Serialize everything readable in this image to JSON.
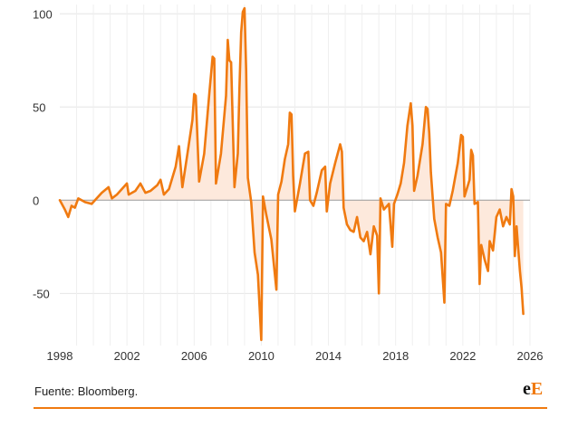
{
  "chart_data": {
    "type": "area",
    "title": "",
    "xlabel": "",
    "ylabel": "",
    "xlim": [
      1998,
      2026
    ],
    "ylim": [
      -78,
      105
    ],
    "y_ticks": [
      100,
      50,
      0,
      -50
    ],
    "y_tick_labels": [
      "100",
      "50",
      "0",
      "-50"
    ],
    "x_ticks": [
      1998,
      2002,
      2006,
      2010,
      2014,
      2018,
      2022,
      2026
    ],
    "x_tick_labels": [
      "1998",
      "2002",
      "2006",
      "2010",
      "2014",
      "2018",
      "2022",
      "2026"
    ],
    "grid": true,
    "legend": "none",
    "series": [
      {
        "color": "#f07a10",
        "fill": "#fde9dc",
        "points": [
          [
            1998.0,
            0
          ],
          [
            1998.3,
            -5
          ],
          [
            1998.5,
            -9
          ],
          [
            1998.7,
            -3
          ],
          [
            1998.9,
            -4
          ],
          [
            1999.1,
            1
          ],
          [
            1999.5,
            -1
          ],
          [
            1999.9,
            -2
          ],
          [
            2000.1,
            0
          ],
          [
            2000.5,
            4
          ],
          [
            2000.9,
            7
          ],
          [
            2001.1,
            1
          ],
          [
            2001.4,
            3
          ],
          [
            2001.8,
            7
          ],
          [
            2002.0,
            9
          ],
          [
            2002.1,
            3
          ],
          [
            2002.5,
            5
          ],
          [
            2002.8,
            9
          ],
          [
            2003.1,
            4
          ],
          [
            2003.4,
            5
          ],
          [
            2003.8,
            8
          ],
          [
            2004.0,
            11
          ],
          [
            2004.2,
            3
          ],
          [
            2004.5,
            6
          ],
          [
            2004.9,
            18
          ],
          [
            2005.1,
            29
          ],
          [
            2005.3,
            7
          ],
          [
            2005.6,
            25
          ],
          [
            2005.9,
            43
          ],
          [
            2006.0,
            57
          ],
          [
            2006.1,
            56
          ],
          [
            2006.3,
            10
          ],
          [
            2006.6,
            25
          ],
          [
            2006.9,
            57
          ],
          [
            2007.1,
            77
          ],
          [
            2007.2,
            76
          ],
          [
            2007.3,
            9
          ],
          [
            2007.6,
            25
          ],
          [
            2007.9,
            56
          ],
          [
            2008.0,
            86
          ],
          [
            2008.1,
            75
          ],
          [
            2008.2,
            74
          ],
          [
            2008.4,
            7
          ],
          [
            2008.6,
            25
          ],
          [
            2008.7,
            60
          ],
          [
            2008.8,
            90
          ],
          [
            2008.9,
            101
          ],
          [
            2009.0,
            103
          ],
          [
            2009.1,
            70
          ],
          [
            2009.2,
            12
          ],
          [
            2009.4,
            -1
          ],
          [
            2009.6,
            -28
          ],
          [
            2009.8,
            -40
          ],
          [
            2010.0,
            -75
          ],
          [
            2010.1,
            2
          ],
          [
            2010.3,
            -8
          ],
          [
            2010.6,
            -21
          ],
          [
            2010.9,
            -48
          ],
          [
            2011.0,
            3
          ],
          [
            2011.2,
            10
          ],
          [
            2011.4,
            22
          ],
          [
            2011.6,
            30
          ],
          [
            2011.7,
            47
          ],
          [
            2011.8,
            46
          ],
          [
            2011.9,
            13
          ],
          [
            2012.0,
            -6
          ],
          [
            2012.3,
            9
          ],
          [
            2012.6,
            25
          ],
          [
            2012.8,
            26
          ],
          [
            2012.9,
            0
          ],
          [
            2013.1,
            -3
          ],
          [
            2013.3,
            4
          ],
          [
            2013.6,
            16
          ],
          [
            2013.8,
            18
          ],
          [
            2013.9,
            -6
          ],
          [
            2014.1,
            9
          ],
          [
            2014.4,
            20
          ],
          [
            2014.7,
            30
          ],
          [
            2014.8,
            26
          ],
          [
            2014.9,
            -4
          ],
          [
            2015.1,
            -13
          ],
          [
            2015.3,
            -16
          ],
          [
            2015.5,
            -17
          ],
          [
            2015.7,
            -9
          ],
          [
            2015.9,
            -20
          ],
          [
            2016.1,
            -22
          ],
          [
            2016.3,
            -17
          ],
          [
            2016.5,
            -29
          ],
          [
            2016.7,
            -14
          ],
          [
            2016.9,
            -19
          ],
          [
            2017.0,
            -50
          ],
          [
            2017.1,
            1
          ],
          [
            2017.3,
            -5
          ],
          [
            2017.6,
            -2
          ],
          [
            2017.8,
            -25
          ],
          [
            2017.9,
            -2
          ],
          [
            2018.1,
            3
          ],
          [
            2018.3,
            9
          ],
          [
            2018.5,
            20
          ],
          [
            2018.7,
            40
          ],
          [
            2018.9,
            52
          ],
          [
            2019.0,
            40
          ],
          [
            2019.1,
            5
          ],
          [
            2019.3,
            13
          ],
          [
            2019.6,
            30
          ],
          [
            2019.8,
            50
          ],
          [
            2019.9,
            49
          ],
          [
            2020.0,
            36
          ],
          [
            2020.1,
            15
          ],
          [
            2020.3,
            -10
          ],
          [
            2020.5,
            -20
          ],
          [
            2020.7,
            -28
          ],
          [
            2020.9,
            -55
          ],
          [
            2021.0,
            -2
          ],
          [
            2021.2,
            -3
          ],
          [
            2021.4,
            5
          ],
          [
            2021.7,
            20
          ],
          [
            2021.9,
            35
          ],
          [
            2022.0,
            34
          ],
          [
            2022.1,
            2
          ],
          [
            2022.4,
            11
          ],
          [
            2022.5,
            27
          ],
          [
            2022.6,
            24
          ],
          [
            2022.7,
            -2
          ],
          [
            2022.9,
            -1
          ],
          [
            2023.0,
            -45
          ],
          [
            2023.1,
            -24
          ],
          [
            2023.3,
            -32
          ],
          [
            2023.5,
            -38
          ],
          [
            2023.6,
            -22
          ],
          [
            2023.8,
            -27
          ],
          [
            2024.0,
            -9
          ],
          [
            2024.2,
            -5
          ],
          [
            2024.4,
            -14
          ],
          [
            2024.6,
            -9
          ],
          [
            2024.8,
            -13
          ],
          [
            2024.9,
            6
          ],
          [
            2025.0,
            2
          ],
          [
            2025.1,
            -30
          ],
          [
            2025.2,
            -14
          ],
          [
            2025.3,
            -26
          ],
          [
            2025.4,
            -38
          ],
          [
            2025.5,
            -47
          ],
          [
            2025.6,
            -61
          ]
        ]
      }
    ]
  },
  "footer": {
    "source": "Fuente: Bloomberg.",
    "logo_part1": "e",
    "logo_part2": "E"
  }
}
